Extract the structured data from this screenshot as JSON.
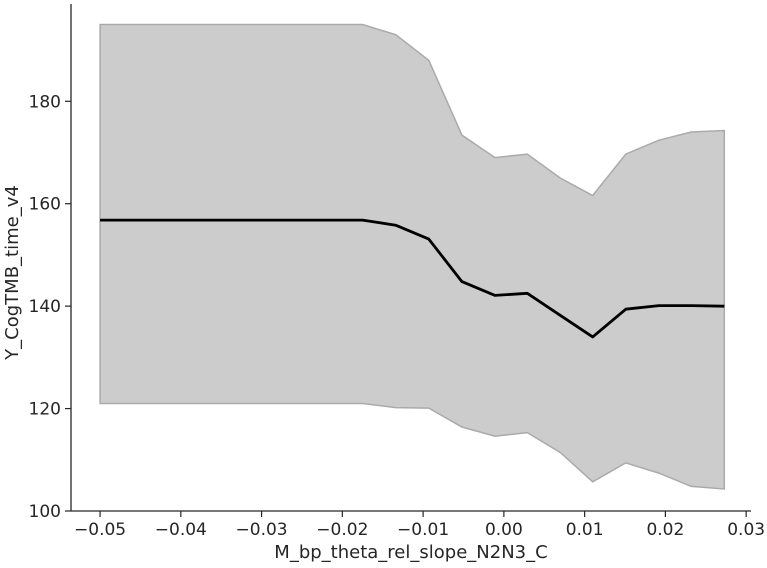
{
  "chart_data": {
    "type": "line",
    "xlabel": "M_bp_theta_rel_slope_N2N3_C",
    "ylabel": "Y_CogTMB_time_v4",
    "xlim": [
      -0.0536,
      0.0306
    ],
    "ylim": [
      100,
      199
    ],
    "xticks": [
      -0.05,
      -0.04,
      -0.03,
      -0.02,
      -0.01,
      0.0,
      0.01,
      0.02,
      0.03
    ],
    "xtick_labels": [
      "−0.05",
      "−0.04",
      "−0.03",
      "−0.02",
      "−0.01",
      "0.00",
      "0.01",
      "0.02",
      "0.03"
    ],
    "yticks": [
      100,
      120,
      140,
      160,
      180
    ],
    "ytick_labels": [
      "100",
      "120",
      "140",
      "160",
      "180"
    ],
    "grid": false,
    "series": [
      {
        "line_color": "#000000",
        "band_color": "#cccccc",
        "band_edge_color": "#aaaaaa",
        "points": [
          {
            "x": -0.05,
            "y": 156.8,
            "lower": 121.0,
            "upper": 195.0
          },
          {
            "x": -0.0175,
            "y": 156.8,
            "lower": 121.0,
            "upper": 195.0
          },
          {
            "x": -0.0134,
            "y": 155.8,
            "lower": 120.2,
            "upper": 193.0
          },
          {
            "x": -0.0093,
            "y": 153.1,
            "lower": 120.1,
            "upper": 188.0
          },
          {
            "x": -0.0052,
            "y": 144.8,
            "lower": 116.4,
            "upper": 173.4
          },
          {
            "x": -0.0011,
            "y": 142.1,
            "lower": 114.6,
            "upper": 169.0
          },
          {
            "x": 0.0029,
            "y": 142.5,
            "lower": 115.3,
            "upper": 169.7
          },
          {
            "x": 0.007,
            "y": 138.2,
            "lower": 111.4,
            "upper": 165.0
          },
          {
            "x": 0.011,
            "y": 134.0,
            "lower": 105.7,
            "upper": 161.6
          },
          {
            "x": 0.0151,
            "y": 139.4,
            "lower": 109.4,
            "upper": 169.7
          },
          {
            "x": 0.0192,
            "y": 140.1,
            "lower": 107.4,
            "upper": 172.4
          },
          {
            "x": 0.0232,
            "y": 140.1,
            "lower": 104.8,
            "upper": 174.0
          },
          {
            "x": 0.0273,
            "y": 140.0,
            "lower": 104.3,
            "upper": 174.3
          }
        ]
      }
    ]
  }
}
